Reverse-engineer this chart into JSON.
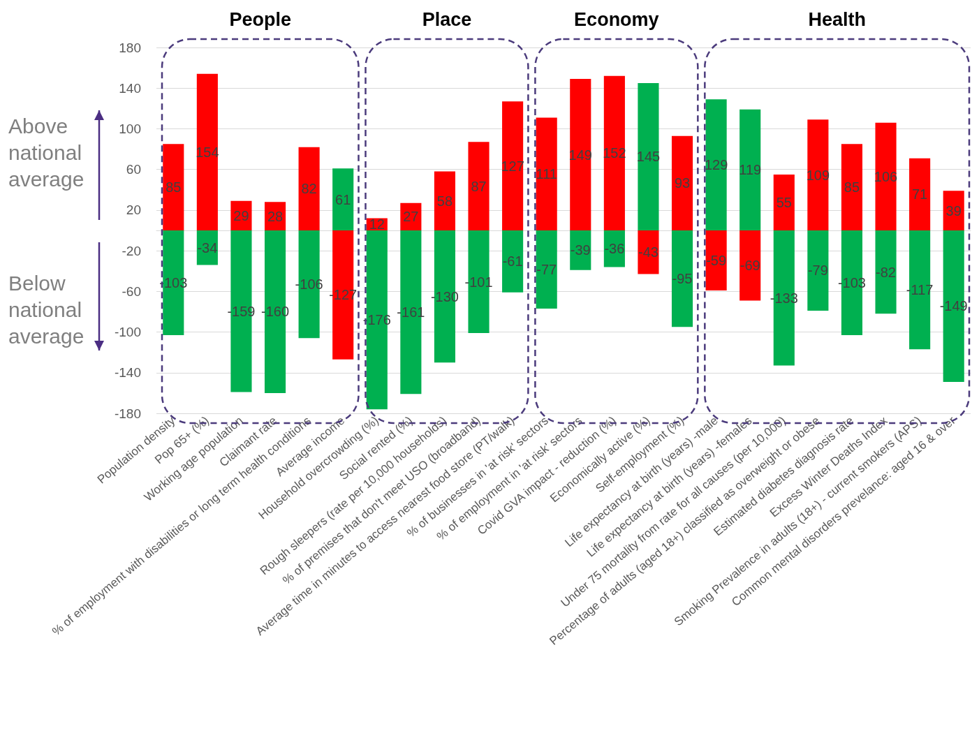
{
  "chart_data": {
    "type": "bar",
    "stacked": true,
    "data_labels": true,
    "grid": "y",
    "categories": [
      "Population density",
      "Pop 65+ (%)",
      "Working age population",
      "Claimant rate",
      "% of employment with disabilities or long term health conditions",
      "Average income",
      "Household overcrowding (%)",
      "Social rented (%)",
      "Rough sleepers (rate per 10,000 households)",
      "% of premises that don't meet USO (broadband)",
      "Average time in minutes to access nearest food store (PT/walk)",
      "% of businesses in 'at risk' sectors",
      "% of employment in 'at risk' sectors",
      "Covid GVA impact - reduction (%)",
      "Economically active (%)",
      "Self-employment (%)",
      "Life expectancy at birth (years) -male",
      "Life expectancy at birth (years) -females",
      "Under 75 mortality from rate for all causes (per 10,000)",
      "Percentage of adults (aged 18+) classified as overweight or obese",
      "Estimated diabetes diagnosis rate",
      "Excess Winter Deaths Index",
      "Smoking Prevalence in adults (18+) - current smokers (APS)",
      "Common mental disorders prevelance: aged 16 & over"
    ],
    "series": [
      {
        "values": [
          85,
          154,
          29,
          28,
          82,
          61,
          12,
          27,
          58,
          87,
          127,
          111,
          149,
          152,
          145,
          93,
          129,
          119,
          55,
          109,
          85,
          106,
          71,
          39
        ],
        "colors": [
          "#ff0000",
          "#ff0000",
          "#ff0000",
          "#ff0000",
          "#ff0000",
          "#00b050",
          "#ff0000",
          "#ff0000",
          "#ff0000",
          "#ff0000",
          "#ff0000",
          "#ff0000",
          "#ff0000",
          "#ff0000",
          "#00b050",
          "#ff0000",
          "#00b050",
          "#00b050",
          "#ff0000",
          "#ff0000",
          "#ff0000",
          "#ff0000",
          "#ff0000",
          "#ff0000"
        ]
      },
      {
        "values": [
          -103,
          -34,
          -159,
          -160,
          -106,
          -127,
          -176,
          -161,
          -130,
          -101,
          -61,
          -77,
          -39,
          -36,
          -43,
          -95,
          -59,
          -69,
          -133,
          -79,
          -103,
          -82,
          -117,
          -149
        ],
        "colors": [
          "#00b050",
          "#00b050",
          "#00b050",
          "#00b050",
          "#00b050",
          "#ff0000",
          "#00b050",
          "#00b050",
          "#00b050",
          "#00b050",
          "#00b050",
          "#00b050",
          "#00b050",
          "#00b050",
          "#ff0000",
          "#00b050",
          "#ff0000",
          "#ff0000",
          "#00b050",
          "#00b050",
          "#00b050",
          "#00b050",
          "#00b050",
          "#00b050"
        ]
      }
    ],
    "ylim": [
      -180,
      180
    ],
    "yticks": [
      -180,
      -140,
      -100,
      -60,
      -20,
      20,
      60,
      100,
      140,
      180
    ],
    "annotations": [
      "People",
      "Place",
      "Economy",
      "Health",
      "Above national average",
      "Below national average"
    ]
  }
}
